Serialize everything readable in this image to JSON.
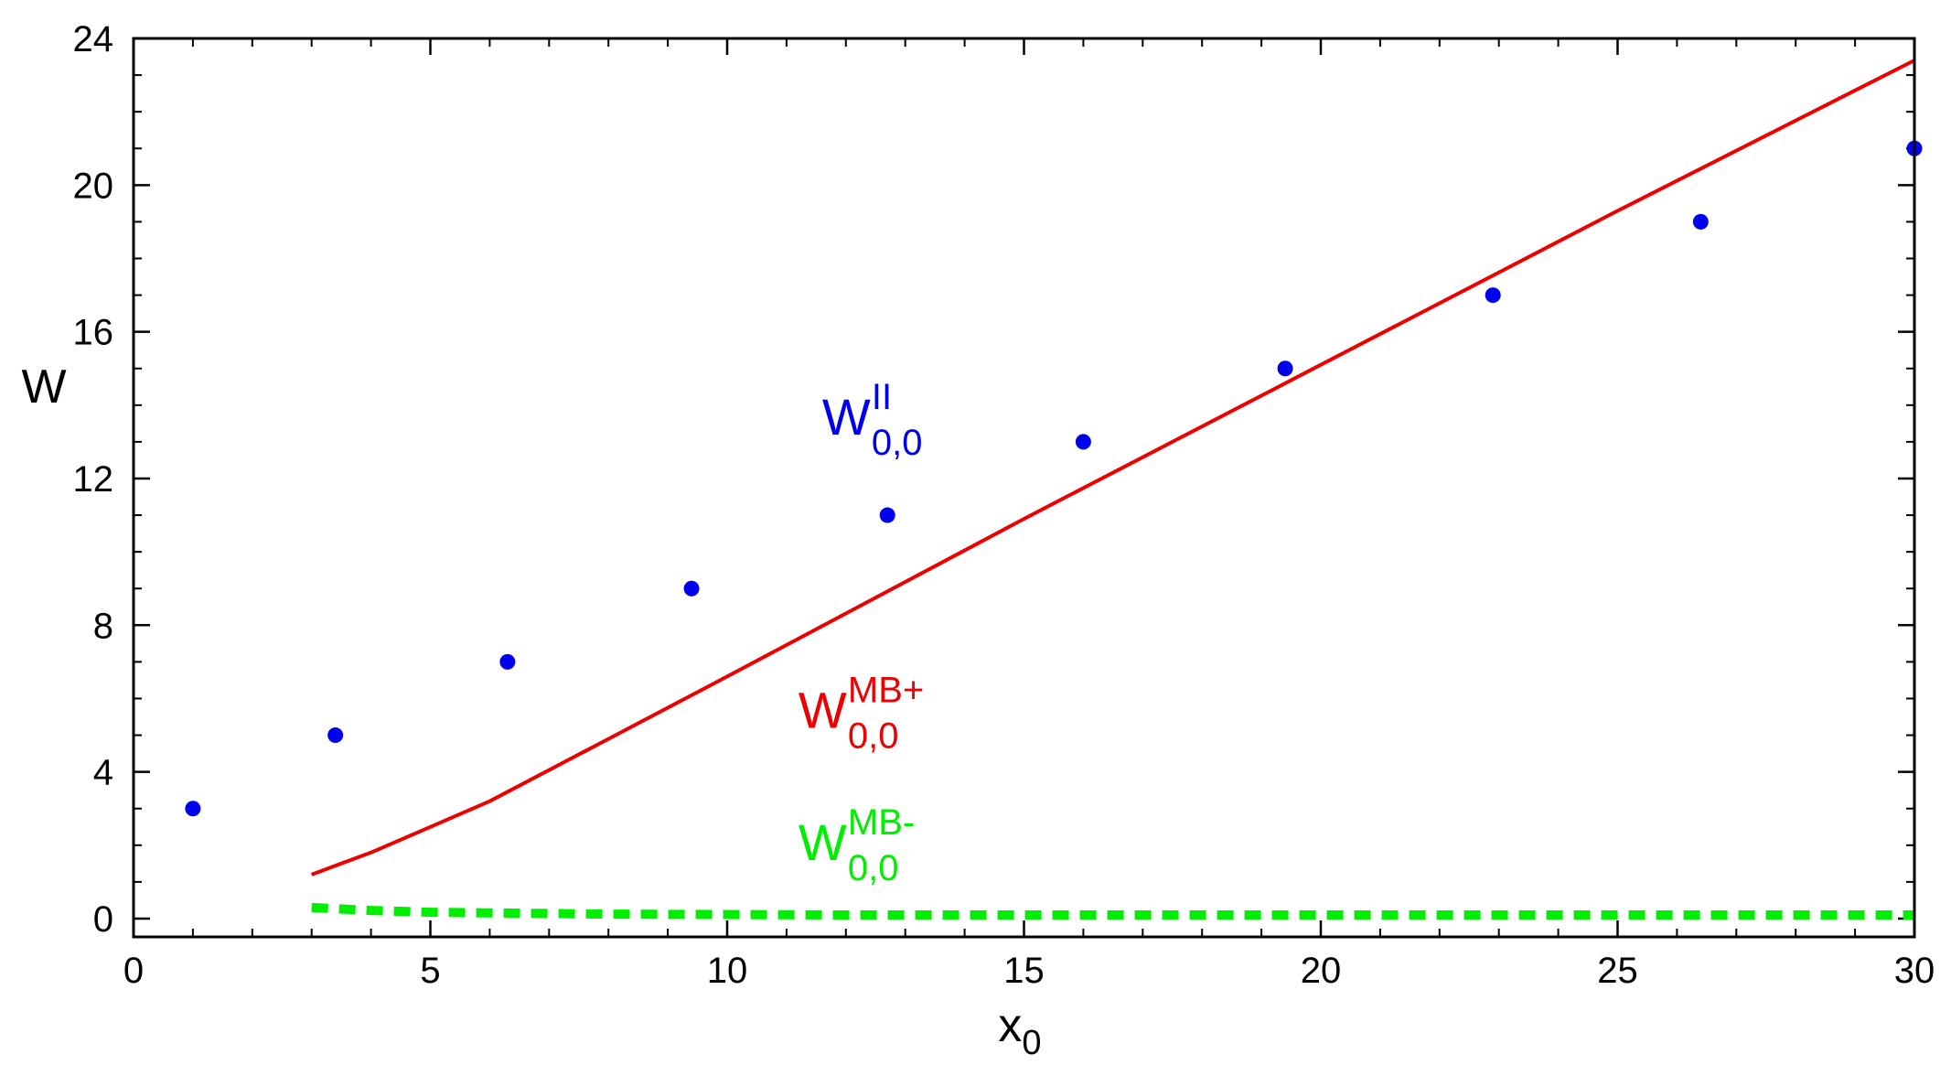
{
  "chart_data": {
    "type": "scatter",
    "title": "",
    "xlabel": {
      "base": "x",
      "sub": "0"
    },
    "ylabel": "W",
    "xlim": [
      0,
      30
    ],
    "ylim": [
      -0.5,
      24
    ],
    "xticks": [
      0,
      5,
      10,
      15,
      20,
      25,
      30
    ],
    "yticks": [
      0,
      4,
      8,
      12,
      16,
      20,
      24
    ],
    "x_minor_step": 1,
    "y_minor_step": 1,
    "grid": false,
    "legend": "none",
    "series": [
      {
        "kind": "scatter",
        "color": "#0000ee",
        "points": [
          [
            1.0,
            3
          ],
          [
            3.4,
            5
          ],
          [
            6.3,
            7
          ],
          [
            9.4,
            9
          ],
          [
            12.7,
            11
          ],
          [
            16.0,
            13
          ],
          [
            19.4,
            15
          ],
          [
            22.9,
            17
          ],
          [
            26.4,
            19
          ],
          [
            30.0,
            21
          ]
        ]
      },
      {
        "kind": "line",
        "style": "solid",
        "color": "#ee0000",
        "points": [
          [
            3.0,
            1.2
          ],
          [
            3.5,
            1.5
          ],
          [
            4.0,
            1.8
          ],
          [
            5.0,
            2.5
          ],
          [
            6.0,
            3.2
          ],
          [
            8.0,
            4.9
          ],
          [
            10.0,
            6.6
          ],
          [
            15.0,
            10.9
          ],
          [
            20.0,
            15.1
          ],
          [
            25.0,
            19.3
          ],
          [
            30.0,
            23.4
          ]
        ]
      },
      {
        "kind": "line",
        "style": "dashed",
        "color": "#00ee00",
        "points": [
          [
            3.0,
            0.3
          ],
          [
            4.0,
            0.22
          ],
          [
            5.0,
            0.17
          ],
          [
            8.0,
            0.12
          ],
          [
            12.0,
            0.1
          ],
          [
            20.0,
            0.1
          ],
          [
            30.0,
            0.1
          ]
        ]
      }
    ],
    "annotations": [
      {
        "base": "W",
        "sup": "II",
        "sub": "0,0",
        "color": "#0000ee",
        "x": 11.6,
        "y": 13.2
      },
      {
        "base": "W",
        "sup": "MB+",
        "sub": "0,0",
        "color": "#ee0000",
        "x": 11.2,
        "y": 5.2
      },
      {
        "base": "W",
        "sup": "MB-",
        "sub": "0,0",
        "color": "#00ee00",
        "x": 11.2,
        "y": 1.6
      }
    ]
  }
}
